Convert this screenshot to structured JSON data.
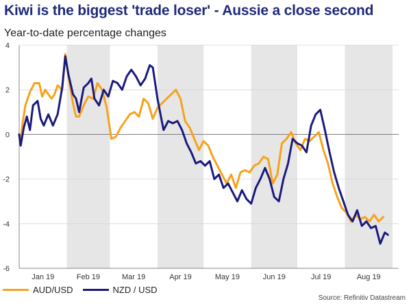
{
  "title": "Kiwi is the biggest 'trade loser' - Aussie a close second",
  "subtitle": "Year-to-date percentage changes",
  "source": "Source: Refinitiv Datastream",
  "colors": {
    "aud": "#f7a21b",
    "nzd": "#1a1a7e",
    "band": "#e6e6e6",
    "title": "#1f2a7a"
  },
  "chart_data": {
    "type": "line",
    "ylim": [
      -6,
      4
    ],
    "yticks": [
      -6,
      -4,
      -2,
      0,
      2,
      4
    ],
    "x_range": [
      "2019-01-01",
      "2019-09-05"
    ],
    "month_labels": [
      "Jan 19",
      "Feb 19",
      "Mar 19",
      "Apr 19",
      "May 19",
      "Jun 19",
      "Jul 19",
      "Aug 19"
    ],
    "shaded_months": [
      "Feb 19",
      "Apr 19",
      "Jun 19",
      "Aug 19"
    ],
    "grid": true,
    "legend": "bottom-left",
    "series": [
      {
        "name": "AUD/USD",
        "color": "#f7a21b",
        "points": [
          [
            "2019-01-01",
            0.0
          ],
          [
            "2019-01-02",
            -0.4
          ],
          [
            "2019-01-03",
            0.4
          ],
          [
            "2019-01-05",
            1.3
          ],
          [
            "2019-01-08",
            1.9
          ],
          [
            "2019-01-11",
            2.3
          ],
          [
            "2019-01-14",
            2.3
          ],
          [
            "2019-01-16",
            1.7
          ],
          [
            "2019-01-18",
            2.0
          ],
          [
            "2019-01-22",
            1.6
          ],
          [
            "2019-01-24",
            1.8
          ],
          [
            "2019-01-26",
            2.2
          ],
          [
            "2019-01-29",
            2.0
          ],
          [
            "2019-01-31",
            3.6
          ],
          [
            "2019-02-02",
            2.6
          ],
          [
            "2019-02-05",
            1.4
          ],
          [
            "2019-02-07",
            0.8
          ],
          [
            "2019-02-09",
            0.8
          ],
          [
            "2019-02-12",
            1.3
          ],
          [
            "2019-02-15",
            1.7
          ],
          [
            "2019-02-18",
            1.6
          ],
          [
            "2019-02-21",
            2.3
          ],
          [
            "2019-02-24",
            2.0
          ],
          [
            "2019-02-27",
            1.2
          ],
          [
            "2019-03-02",
            -0.2
          ],
          [
            "2019-03-05",
            -0.1
          ],
          [
            "2019-03-08",
            0.3
          ],
          [
            "2019-03-11",
            0.6
          ],
          [
            "2019-03-14",
            0.9
          ],
          [
            "2019-03-17",
            1.0
          ],
          [
            "2019-03-20",
            0.8
          ],
          [
            "2019-03-23",
            1.6
          ],
          [
            "2019-03-26",
            1.4
          ],
          [
            "2019-03-29",
            0.7
          ],
          [
            "2019-04-01",
            1.2
          ],
          [
            "2019-04-04",
            1.4
          ],
          [
            "2019-04-07",
            1.6
          ],
          [
            "2019-04-10",
            1.8
          ],
          [
            "2019-04-13",
            2.0
          ],
          [
            "2019-04-16",
            1.6
          ],
          [
            "2019-04-19",
            0.6
          ],
          [
            "2019-04-22",
            0.3
          ],
          [
            "2019-04-25",
            -0.2
          ],
          [
            "2019-04-28",
            -0.7
          ],
          [
            "2019-05-01",
            -0.3
          ],
          [
            "2019-05-04",
            -0.5
          ],
          [
            "2019-05-07",
            -1.0
          ],
          [
            "2019-05-10",
            -1.4
          ],
          [
            "2019-05-13",
            -1.8
          ],
          [
            "2019-05-16",
            -2.2
          ],
          [
            "2019-05-19",
            -1.8
          ],
          [
            "2019-05-22",
            -2.4
          ],
          [
            "2019-05-25",
            -1.7
          ],
          [
            "2019-05-28",
            -1.6
          ],
          [
            "2019-05-31",
            -1.7
          ],
          [
            "2019-06-03",
            -1.4
          ],
          [
            "2019-06-06",
            -1.3
          ],
          [
            "2019-06-09",
            -1.0
          ],
          [
            "2019-06-12",
            -1.1
          ],
          [
            "2019-06-15",
            -2.2
          ],
          [
            "2019-06-18",
            -1.8
          ],
          [
            "2019-06-21",
            -0.4
          ],
          [
            "2019-06-24",
            -0.2
          ],
          [
            "2019-06-27",
            0.1
          ],
          [
            "2019-06-30",
            -0.4
          ],
          [
            "2019-07-03",
            -0.7
          ],
          [
            "2019-07-06",
            -0.2
          ],
          [
            "2019-07-09",
            -0.3
          ],
          [
            "2019-07-12",
            -0.1
          ],
          [
            "2019-07-15",
            0.1
          ],
          [
            "2019-07-18",
            -0.7
          ],
          [
            "2019-07-21",
            -1.3
          ],
          [
            "2019-07-24",
            -2.2
          ],
          [
            "2019-07-27",
            -2.8
          ],
          [
            "2019-07-30",
            -3.3
          ],
          [
            "2019-08-02",
            -3.5
          ],
          [
            "2019-08-05",
            -3.9
          ],
          [
            "2019-08-08",
            -3.6
          ],
          [
            "2019-08-11",
            -3.8
          ],
          [
            "2019-08-14",
            -3.7
          ],
          [
            "2019-08-17",
            -3.9
          ],
          [
            "2019-08-20",
            -3.6
          ],
          [
            "2019-08-23",
            -3.9
          ],
          [
            "2019-08-26",
            -3.7
          ]
        ]
      },
      {
        "name": "NZD / USD",
        "color": "#1a1a7e",
        "points": [
          [
            "2019-01-01",
            0.0
          ],
          [
            "2019-01-02",
            -0.5
          ],
          [
            "2019-01-04",
            0.3
          ],
          [
            "2019-01-06",
            0.8
          ],
          [
            "2019-01-08",
            0.2
          ],
          [
            "2019-01-10",
            1.3
          ],
          [
            "2019-01-13",
            1.5
          ],
          [
            "2019-01-15",
            0.7
          ],
          [
            "2019-01-17",
            0.4
          ],
          [
            "2019-01-20",
            0.9
          ],
          [
            "2019-01-23",
            0.4
          ],
          [
            "2019-01-26",
            0.9
          ],
          [
            "2019-01-29",
            2.1
          ],
          [
            "2019-01-31",
            3.5
          ],
          [
            "2019-02-02",
            2.7
          ],
          [
            "2019-02-05",
            1.8
          ],
          [
            "2019-02-07",
            1.6
          ],
          [
            "2019-02-09",
            1.0
          ],
          [
            "2019-02-12",
            2.1
          ],
          [
            "2019-02-15",
            2.3
          ],
          [
            "2019-02-17",
            2.5
          ],
          [
            "2019-02-19",
            1.6
          ],
          [
            "2019-02-22",
            1.3
          ],
          [
            "2019-02-25",
            2.0
          ],
          [
            "2019-02-28",
            1.7
          ],
          [
            "2019-03-03",
            2.4
          ],
          [
            "2019-03-06",
            2.3
          ],
          [
            "2019-03-09",
            2.0
          ],
          [
            "2019-03-12",
            2.6
          ],
          [
            "2019-03-15",
            2.9
          ],
          [
            "2019-03-18",
            2.6
          ],
          [
            "2019-03-21",
            2.2
          ],
          [
            "2019-03-24",
            2.5
          ],
          [
            "2019-03-27",
            3.1
          ],
          [
            "2019-03-29",
            3.0
          ],
          [
            "2019-04-01",
            1.6
          ],
          [
            "2019-04-03",
            0.9
          ],
          [
            "2019-04-05",
            0.2
          ],
          [
            "2019-04-08",
            0.6
          ],
          [
            "2019-04-11",
            0.5
          ],
          [
            "2019-04-14",
            0.6
          ],
          [
            "2019-04-17",
            0.2
          ],
          [
            "2019-04-20",
            -0.4
          ],
          [
            "2019-04-23",
            -0.8
          ],
          [
            "2019-04-26",
            -1.3
          ],
          [
            "2019-04-29",
            -1.2
          ],
          [
            "2019-05-02",
            -1.4
          ],
          [
            "2019-05-05",
            -1.2
          ],
          [
            "2019-05-08",
            -2.0
          ],
          [
            "2019-05-11",
            -1.8
          ],
          [
            "2019-05-14",
            -2.4
          ],
          [
            "2019-05-17",
            -2.2
          ],
          [
            "2019-05-20",
            -2.6
          ],
          [
            "2019-05-23",
            -3.0
          ],
          [
            "2019-05-26",
            -2.5
          ],
          [
            "2019-05-29",
            -2.9
          ],
          [
            "2019-06-01",
            -3.1
          ],
          [
            "2019-06-04",
            -2.4
          ],
          [
            "2019-06-07",
            -2.0
          ],
          [
            "2019-06-10",
            -1.5
          ],
          [
            "2019-06-13",
            -2.0
          ],
          [
            "2019-06-16",
            -2.8
          ],
          [
            "2019-06-19",
            -3.0
          ],
          [
            "2019-06-22",
            -2.0
          ],
          [
            "2019-06-25",
            -1.3
          ],
          [
            "2019-06-28",
            -0.2
          ],
          [
            "2019-07-01",
            -0.4
          ],
          [
            "2019-07-04",
            -0.5
          ],
          [
            "2019-07-07",
            -0.8
          ],
          [
            "2019-07-10",
            0.4
          ],
          [
            "2019-07-13",
            0.9
          ],
          [
            "2019-07-16",
            1.1
          ],
          [
            "2019-07-19",
            0.2
          ],
          [
            "2019-07-22",
            -0.8
          ],
          [
            "2019-07-25",
            -1.7
          ],
          [
            "2019-07-28",
            -2.4
          ],
          [
            "2019-07-31",
            -3.0
          ],
          [
            "2019-08-03",
            -3.6
          ],
          [
            "2019-08-06",
            -3.9
          ],
          [
            "2019-08-09",
            -3.4
          ],
          [
            "2019-08-12",
            -4.1
          ],
          [
            "2019-08-15",
            -3.9
          ],
          [
            "2019-08-18",
            -4.2
          ],
          [
            "2019-08-21",
            -4.1
          ],
          [
            "2019-08-24",
            -4.9
          ],
          [
            "2019-08-27",
            -4.4
          ],
          [
            "2019-08-29",
            -4.5
          ]
        ]
      }
    ]
  }
}
